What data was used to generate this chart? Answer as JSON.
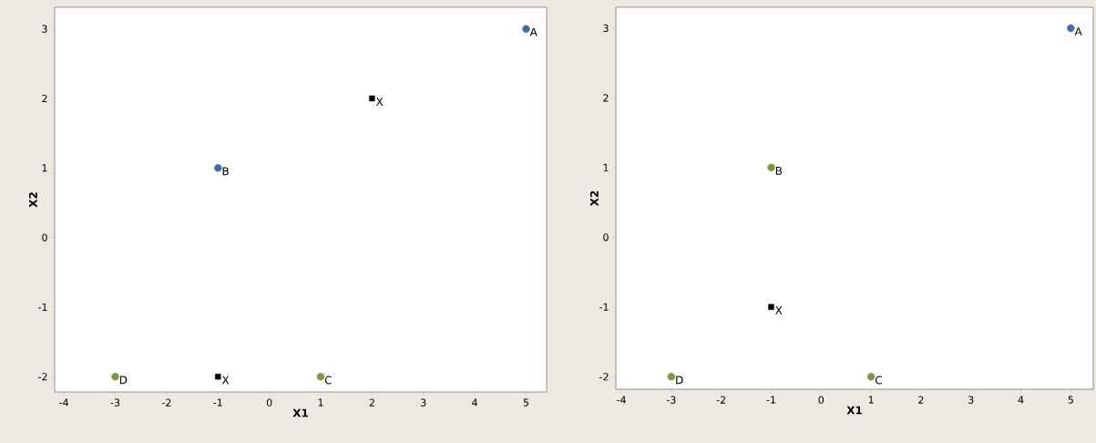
{
  "chart_data": [
    {
      "type": "scatter",
      "xlabel": "X1",
      "ylabel": "X2",
      "xlim": [
        -4.18,
        5.4
      ],
      "ylim": [
        -2.22,
        3.31
      ],
      "xticks": [
        -4,
        -3,
        -2,
        -1,
        0,
        1,
        2,
        3,
        4,
        5
      ],
      "yticks": [
        -2,
        -1,
        0,
        1,
        2,
        3
      ],
      "series": [
        {
          "color": "#3f6ea8",
          "marker": "circle",
          "x": [
            5,
            -1
          ],
          "values": [
            3,
            1
          ]
        },
        {
          "color": "#7a9a3a",
          "marker": "circle",
          "x": [
            1,
            -3
          ],
          "values": [
            -2,
            -2
          ]
        },
        {
          "color": "#000000",
          "marker": "square",
          "x": [
            2,
            -1
          ],
          "values": [
            2,
            -2
          ]
        }
      ],
      "annotations": [
        {
          "text": "A",
          "x": 5,
          "y": 3
        },
        {
          "text": "B",
          "x": -1,
          "y": 1
        },
        {
          "text": "C",
          "x": 1,
          "y": -2
        },
        {
          "text": "D",
          "x": -3,
          "y": -2
        },
        {
          "text": "X",
          "x": 2,
          "y": 2
        },
        {
          "text": "X",
          "x": -1,
          "y": -2
        }
      ]
    },
    {
      "type": "scatter",
      "xlabel": "X1",
      "ylabel": "X2",
      "xlim": [
        -4.11,
        5.45
      ],
      "ylim": [
        -2.18,
        3.3
      ],
      "xticks": [
        -4,
        -3,
        -2,
        -1,
        0,
        1,
        2,
        3,
        4,
        5
      ],
      "yticks": [
        -2,
        -1,
        0,
        1,
        2,
        3
      ],
      "series": [
        {
          "color": "#3f6ea8",
          "marker": "circle",
          "x": [
            5
          ],
          "values": [
            3
          ]
        },
        {
          "color": "#7a9a3a",
          "marker": "circle",
          "x": [
            -1,
            1,
            -3
          ],
          "values": [
            1,
            -2,
            -2
          ]
        },
        {
          "color": "#000000",
          "marker": "square",
          "x": [
            -1
          ],
          "values": [
            -1
          ]
        }
      ],
      "annotations": [
        {
          "text": "A",
          "x": 5,
          "y": 3
        },
        {
          "text": "B",
          "x": -1,
          "y": 1
        },
        {
          "text": "C",
          "x": 1,
          "y": -2
        },
        {
          "text": "D",
          "x": -3,
          "y": -2
        },
        {
          "text": "X",
          "x": -1,
          "y": -1
        }
      ]
    }
  ]
}
